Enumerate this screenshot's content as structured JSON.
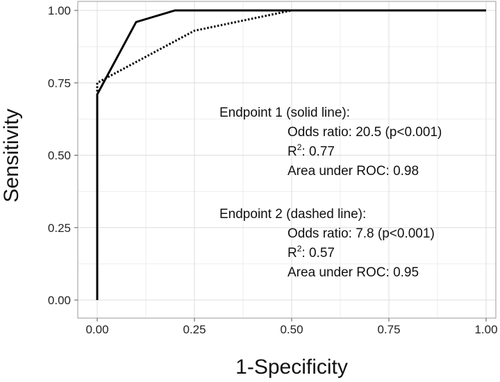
{
  "chart_data": {
    "type": "line",
    "title": "",
    "xlabel": "1-Specificity",
    "ylabel": "Sensitivity",
    "xlim": [
      0,
      1
    ],
    "ylim": [
      0,
      1
    ],
    "x_ticks": [
      "0.00",
      "0.25",
      "0.50",
      "0.75",
      "1.00"
    ],
    "y_ticks": [
      "0.00",
      "0.25",
      "0.50",
      "0.75",
      "1.00"
    ],
    "grid": true,
    "series": [
      {
        "style": "solid",
        "color": "#000000",
        "points": [
          [
            0.0,
            0.0
          ],
          [
            0.0,
            0.71
          ],
          [
            0.1,
            0.96
          ],
          [
            0.2,
            1.0
          ],
          [
            1.0,
            1.0
          ]
        ]
      },
      {
        "style": "dotted",
        "color": "#000000",
        "points": [
          [
            0.0,
            0.72
          ],
          [
            0.0,
            0.75
          ],
          [
            0.25,
            0.93
          ],
          [
            0.5,
            1.0
          ],
          [
            1.0,
            1.0
          ]
        ]
      }
    ],
    "annotations": {
      "endpoint1": {
        "heading": "Endpoint 1 (solid line):",
        "odds": "Odds ratio: 20.5 (p<0.001)",
        "r2_prefix": "R",
        "r2_sup": "2",
        "r2_value": ": 0.77",
        "auc": "Area under ROC: 0.98"
      },
      "endpoint2": {
        "heading": "Endpoint 2 (dashed line):",
        "odds": "Odds ratio: 7.8 (p<0.001)",
        "r2_prefix": "R",
        "r2_sup": "2",
        "r2_value": ": 0.57",
        "auc": "Area under ROC: 0.95"
      }
    }
  }
}
